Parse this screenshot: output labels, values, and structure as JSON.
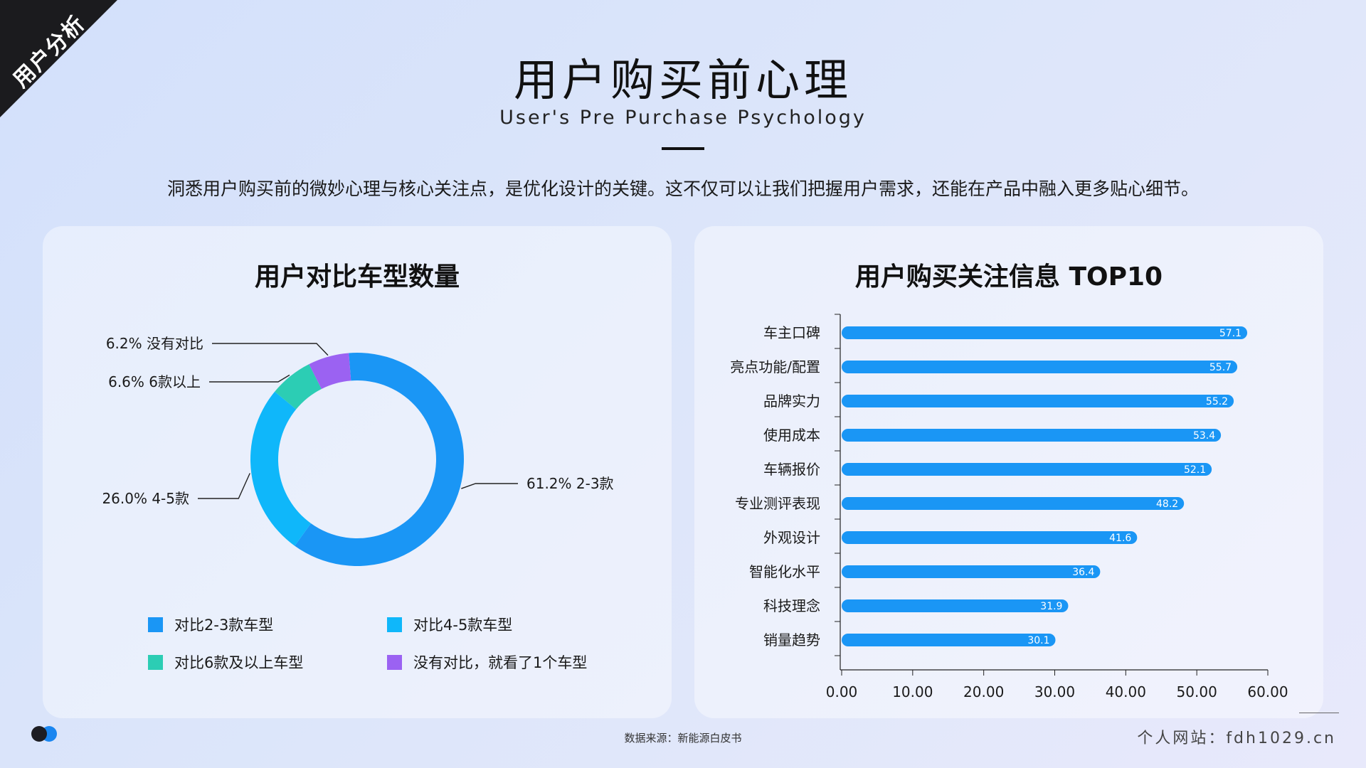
{
  "corner_tag": "用户分析",
  "header": {
    "title": "用户购买前心理",
    "subtitle": "User's Pre Purchase Psychology",
    "description": "洞悉用户购买前的微妙心理与核心关注点，是优化设计的关键。这不仅可以让我们把握用户需求，还能在产品中融入更多贴心细节。"
  },
  "footer": {
    "source": "数据来源：新能源白皮书",
    "site": "个人网站：fdh1029.cn"
  },
  "colors": {
    "accent": "#1a86f0",
    "donut": [
      "#1a96f5",
      "#0fb7fa",
      "#2ccdb4",
      "#9b62f2"
    ]
  },
  "chart_data": [
    {
      "type": "pie",
      "donut": true,
      "title": "用户对比车型数量",
      "slices": [
        {
          "value": 61.2,
          "label": "61.2% 2-3款",
          "legend": "对比2-3款车型",
          "color": "#1a96f5"
        },
        {
          "value": 26.0,
          "label": "26.0% 4-5款",
          "legend": "对比4-5款车型",
          "color": "#0fb7fa"
        },
        {
          "value": 6.6,
          "label": "6.6% 6款以上",
          "legend": "对比6款及以上车型",
          "color": "#2ccdb4"
        },
        {
          "value": 6.2,
          "label": "6.2% 没有对比",
          "legend": "没有对比，就看了1个车型",
          "color": "#9b62f2"
        }
      ]
    },
    {
      "type": "bar",
      "orientation": "horizontal",
      "title": "用户购买关注信息 TOP10",
      "categories": [
        "车主口碑",
        "亮点功能/配置",
        "品牌实力",
        "使用成本",
        "车辆报价",
        "专业测评表现",
        "外观设计",
        "智能化水平",
        "科技理念",
        "销量趋势"
      ],
      "values": [
        57.1,
        55.7,
        55.2,
        53.4,
        52.1,
        48.2,
        41.6,
        36.4,
        31.9,
        30.1
      ],
      "xlim": [
        0,
        60
      ],
      "xticks": [
        "0.00",
        "10.00",
        "20.00",
        "30.00",
        "40.00",
        "50.00",
        "60.00"
      ],
      "bar_color": "#1a96f5"
    }
  ]
}
